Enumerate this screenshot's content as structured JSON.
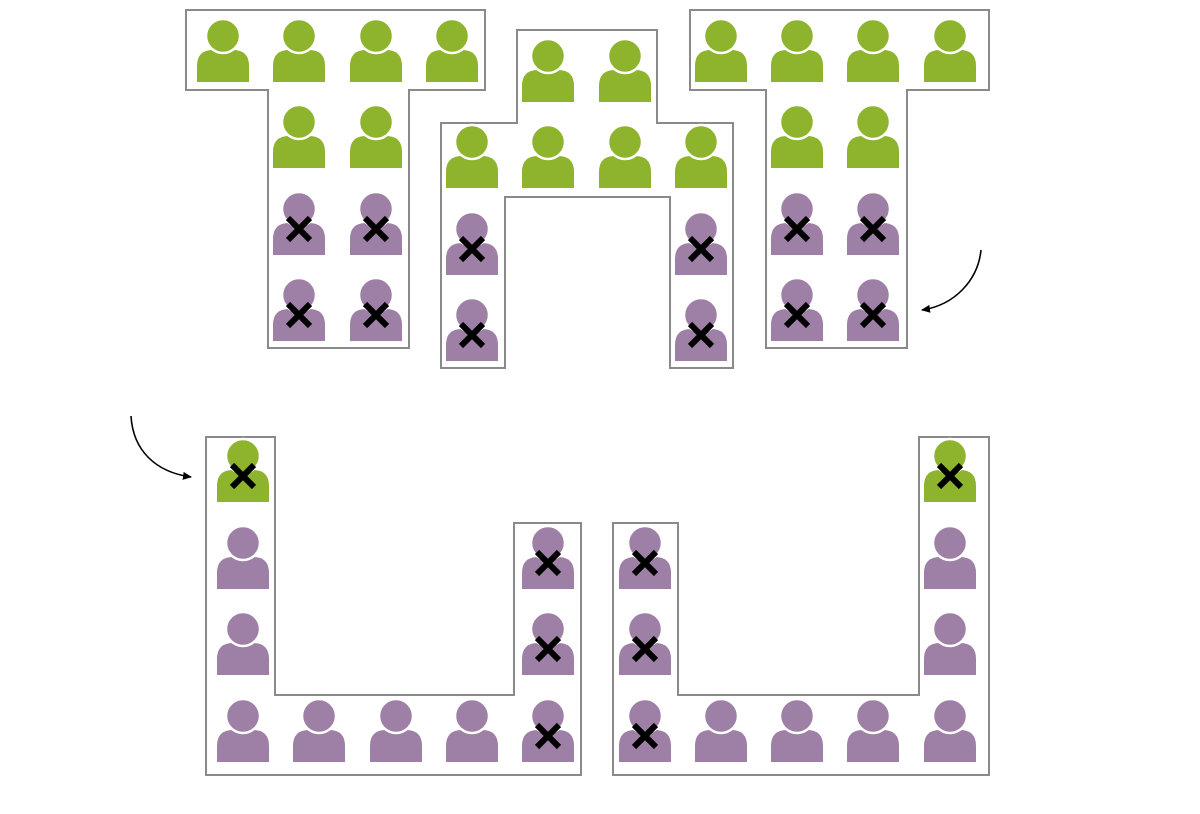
{
  "colors": {
    "green": "#8db42c",
    "purple": "#9e7fa5",
    "outline": "#8a8a8a",
    "cross": "#000000",
    "arrow": "#000000",
    "background": "#ffffff"
  },
  "icons": {
    "person": "person-icon",
    "cross": "cross-icon",
    "arrow": "curved-arrow-icon"
  },
  "groups": [
    {
      "id": "top-left-t",
      "people": [
        {
          "c": "green",
          "x": false
        },
        {
          "c": "green",
          "x": false
        },
        {
          "c": "green",
          "x": false
        },
        {
          "c": "green",
          "x": false
        },
        {
          "c": "green",
          "x": false
        },
        {
          "c": "green",
          "x": false
        },
        {
          "c": "purple",
          "x": true
        },
        {
          "c": "purple",
          "x": true
        },
        {
          "c": "purple",
          "x": true
        },
        {
          "c": "purple",
          "x": true
        }
      ]
    },
    {
      "id": "top-middle-arch",
      "people": [
        {
          "c": "green",
          "x": false
        },
        {
          "c": "green",
          "x": false
        },
        {
          "c": "green",
          "x": false
        },
        {
          "c": "green",
          "x": false
        },
        {
          "c": "green",
          "x": false
        },
        {
          "c": "green",
          "x": false
        },
        {
          "c": "purple",
          "x": true
        },
        {
          "c": "purple",
          "x": true
        },
        {
          "c": "purple",
          "x": true
        },
        {
          "c": "purple",
          "x": true
        }
      ]
    },
    {
      "id": "top-right-t",
      "people": [
        {
          "c": "green",
          "x": false
        },
        {
          "c": "green",
          "x": false
        },
        {
          "c": "green",
          "x": false
        },
        {
          "c": "green",
          "x": false
        },
        {
          "c": "green",
          "x": false
        },
        {
          "c": "green",
          "x": false
        },
        {
          "c": "purple",
          "x": true
        },
        {
          "c": "purple",
          "x": true
        },
        {
          "c": "purple",
          "x": true
        },
        {
          "c": "purple",
          "x": true
        }
      ]
    },
    {
      "id": "bottom-left-u",
      "people": [
        {
          "c": "green",
          "x": true
        },
        {
          "c": "purple",
          "x": false
        },
        {
          "c": "purple",
          "x": false
        },
        {
          "c": "purple",
          "x": false
        },
        {
          "c": "purple",
          "x": false
        },
        {
          "c": "purple",
          "x": false
        },
        {
          "c": "purple",
          "x": false
        },
        {
          "c": "purple",
          "x": true
        },
        {
          "c": "purple",
          "x": true
        },
        {
          "c": "purple",
          "x": true
        }
      ]
    },
    {
      "id": "bottom-right-u",
      "people": [
        {
          "c": "purple",
          "x": true
        },
        {
          "c": "purple",
          "x": true
        },
        {
          "c": "purple",
          "x": true
        },
        {
          "c": "purple",
          "x": false
        },
        {
          "c": "purple",
          "x": false
        },
        {
          "c": "purple",
          "x": false
        },
        {
          "c": "purple",
          "x": false
        },
        {
          "c": "purple",
          "x": false
        },
        {
          "c": "purple",
          "x": false
        },
        {
          "c": "green",
          "x": true
        }
      ]
    }
  ]
}
